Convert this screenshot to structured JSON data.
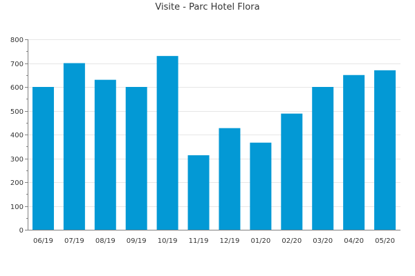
{
  "chart_data": {
    "type": "bar",
    "title": "Visite - Parc Hotel Flora",
    "xlabel": "",
    "ylabel": "",
    "categories": [
      "06/19",
      "07/19",
      "08/19",
      "09/19",
      "10/19",
      "11/19",
      "12/19",
      "01/20",
      "02/20",
      "03/20",
      "04/20",
      "05/20"
    ],
    "values": [
      600,
      700,
      630,
      600,
      730,
      313,
      427,
      366,
      488,
      600,
      650,
      670
    ],
    "ylim": [
      0,
      800
    ],
    "yticks": [
      0,
      100,
      200,
      300,
      400,
      500,
      600,
      700,
      800
    ],
    "grid": true,
    "legend": "none",
    "bar_color": "#0399d5",
    "grid_color": "#e6e6e6",
    "axis_color": "#7f7f7f"
  }
}
